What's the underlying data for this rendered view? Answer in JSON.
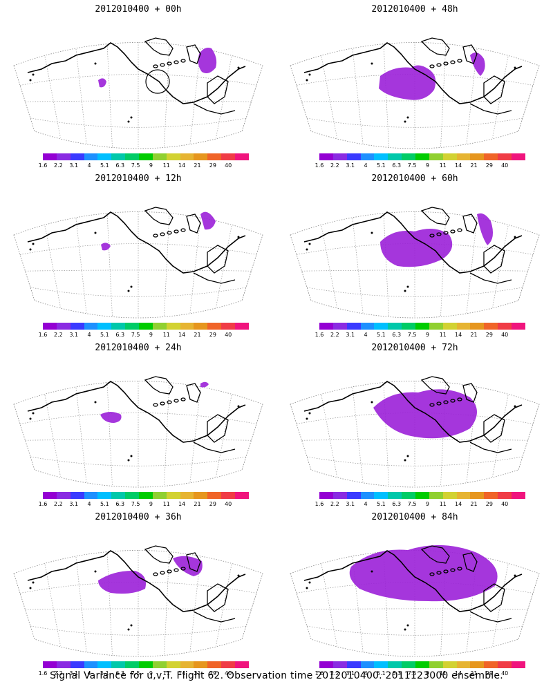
{
  "panels": [
    {
      "title": "2012010400 + 00h"
    },
    {
      "title": "2012010400 + 48h"
    },
    {
      "title": "2012010400 + 12h"
    },
    {
      "title": "2012010400 + 60h"
    },
    {
      "title": "2012010400 + 24h"
    },
    {
      "title": "2012010400 + 72h"
    },
    {
      "title": "2012010400 + 36h"
    },
    {
      "title": "2012010400 + 84h"
    }
  ],
  "colorbar": {
    "colors": [
      "#9400d3",
      "#8a2be2",
      "#3a3aff",
      "#1e90ff",
      "#00bfff",
      "#00c8aa",
      "#00cc66",
      "#00cc00",
      "#90d030",
      "#d2d232",
      "#e6b432",
      "#e6961e",
      "#f06428",
      "#f03c46",
      "#f0147d"
    ],
    "ticks": [
      "1.6",
      "2.2",
      "3.1",
      "4",
      "5.1",
      "6.3",
      "7.5",
      "9",
      "11",
      "14",
      "21",
      "29",
      "40"
    ]
  },
  "caption": "Signal Variance for u,v,T. Flight 62. Observation time 2012010400. 2011123000 ensemble."
}
